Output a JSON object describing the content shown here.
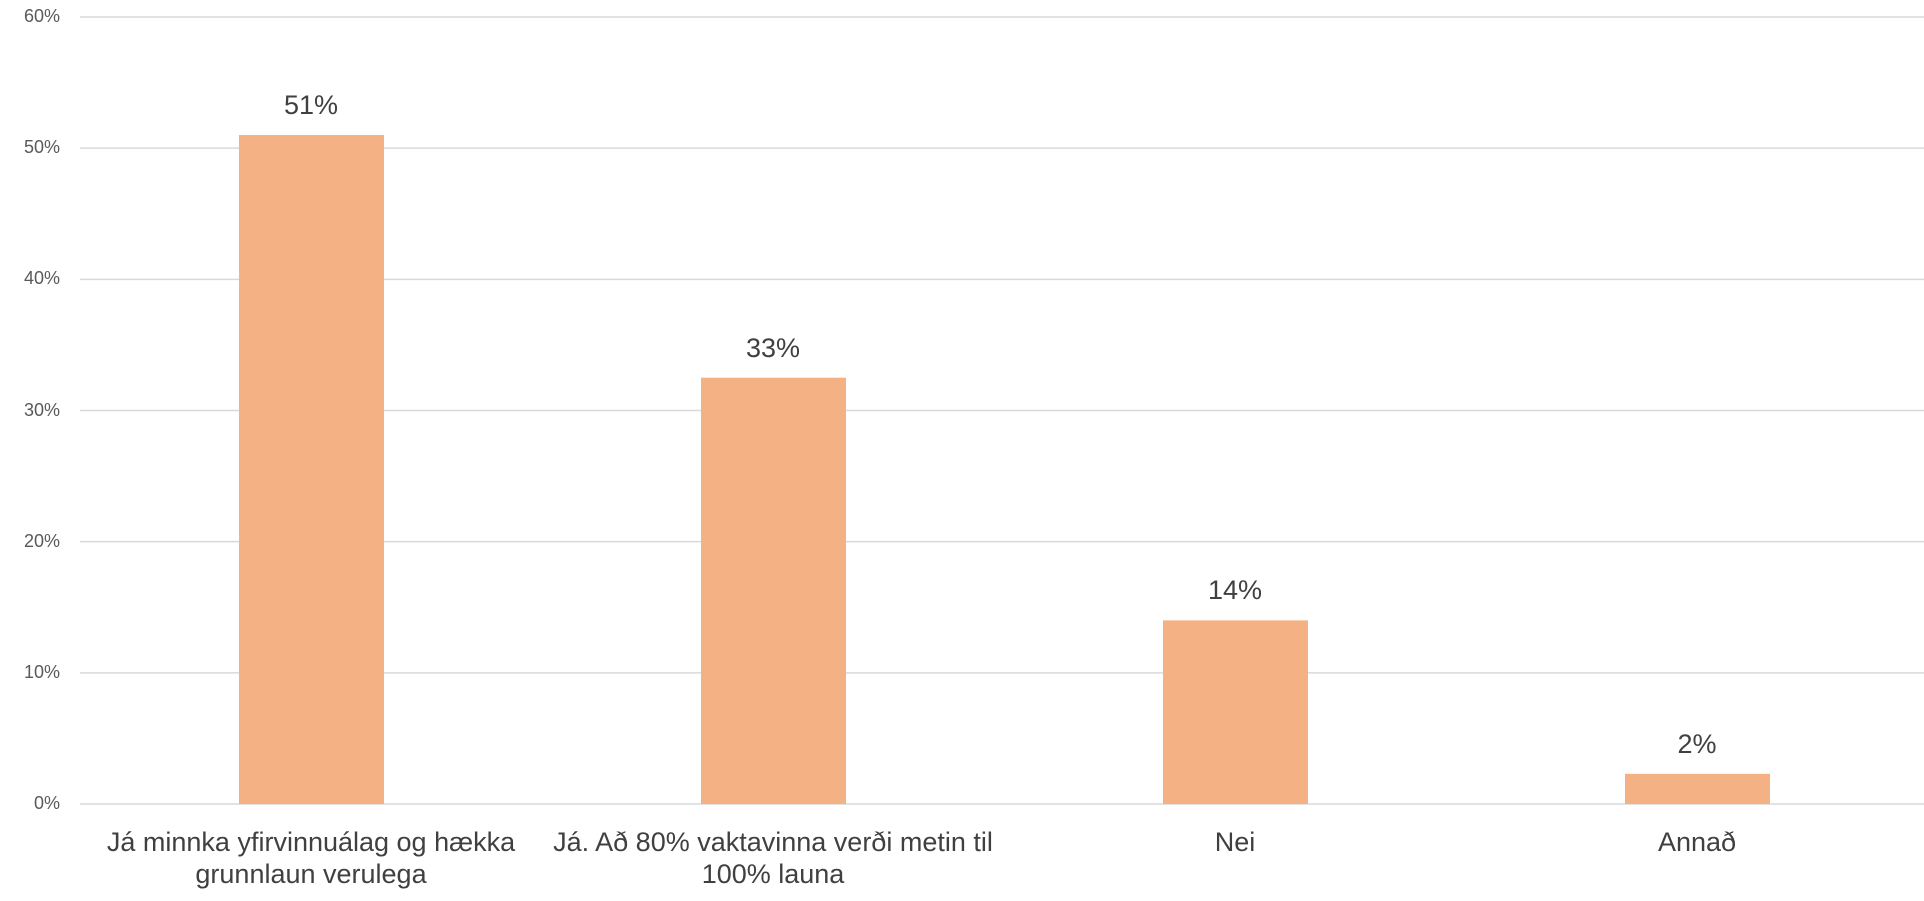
{
  "chart_data": {
    "type": "bar",
    "categories": [
      "Já minnka yfirvinnuálag og hækka grunnlaun verulega",
      "Já. Að 80% vaktavinna verði metin til 100% launa",
      "Nei",
      "Annað"
    ],
    "values": [
      51,
      32.5,
      14,
      2.3
    ],
    "value_labels": [
      "51%",
      "33%",
      "14%",
      "2%"
    ],
    "color": "#f4b183",
    "ylim": [
      0,
      60
    ],
    "yticks": [
      {
        "value": 0,
        "label": "0%"
      },
      {
        "value": 10,
        "label": "10%"
      },
      {
        "value": 20,
        "label": "20%"
      },
      {
        "value": 30,
        "label": "30%"
      },
      {
        "value": 40,
        "label": "40%"
      },
      {
        "value": 50,
        "label": "50%"
      },
      {
        "value": 60,
        "label": "60%"
      }
    ],
    "grid": true
  }
}
